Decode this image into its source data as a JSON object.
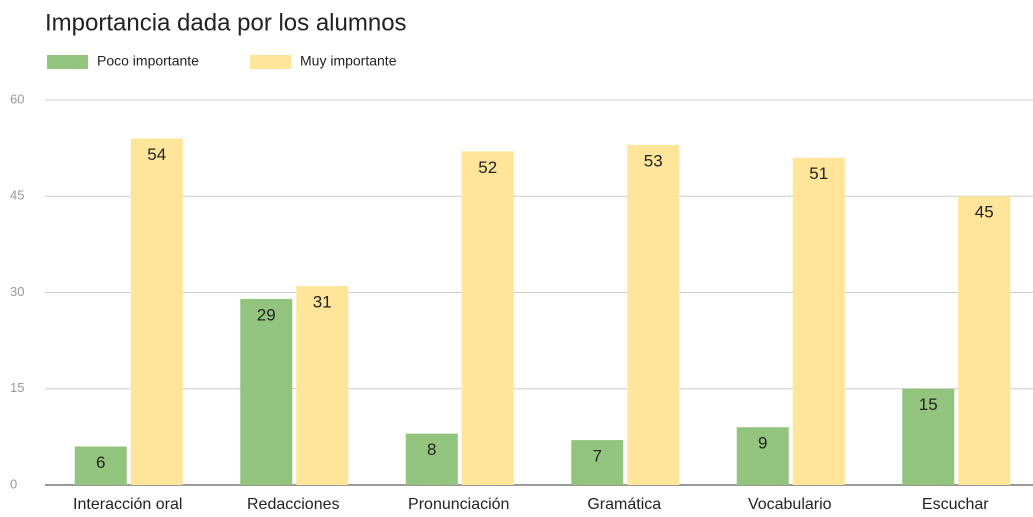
{
  "chart_data": {
    "type": "bar",
    "title": "Importancia dada por los alumnos",
    "categories": [
      "Interacción oral",
      "Redacciones",
      "Pronunciación",
      "Gramática",
      "Vocabulario",
      "Escuchar"
    ],
    "series": [
      {
        "name": "Poco importante",
        "color": "#93c47d",
        "values": [
          6,
          29,
          8,
          7,
          9,
          15
        ]
      },
      {
        "name": "Muy importante",
        "color": "#ffe599",
        "values": [
          54,
          31,
          52,
          53,
          51,
          45
        ]
      }
    ],
    "ylim": [
      0,
      60
    ],
    "yticks": [
      0,
      15,
      30,
      45,
      60
    ],
    "grid": true,
    "legend": "top-left"
  }
}
